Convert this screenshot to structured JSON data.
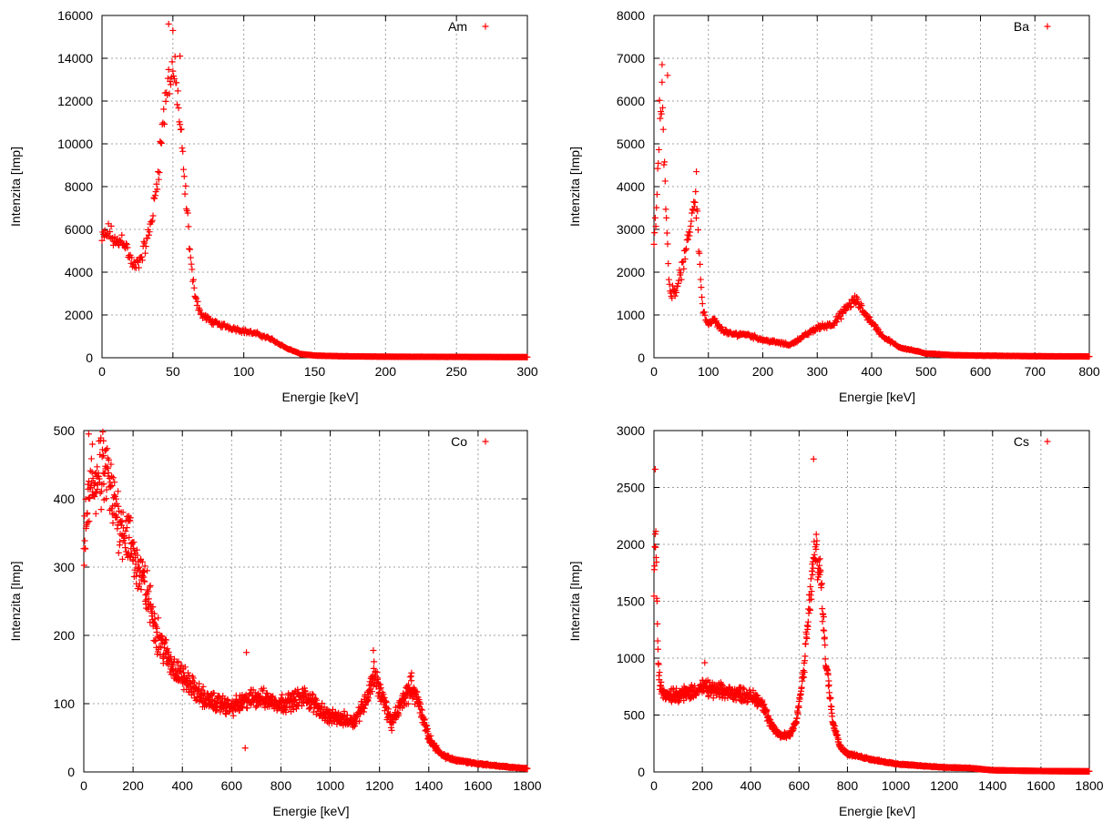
{
  "colors": {
    "series": "#ff0000",
    "grid": "#a0a0a0",
    "axis": "#000000"
  },
  "chart_data": [
    {
      "type": "scatter",
      "legend": "Am",
      "legend_position": "top-right",
      "grid": true,
      "xlabel": "Energie [keV]",
      "ylabel": "Intenzita [Imp]",
      "xlim": [
        0,
        300
      ],
      "ylim": [
        0,
        16000
      ],
      "xticks": [
        0,
        50,
        100,
        150,
        200,
        250,
        300
      ],
      "yticks": [
        0,
        2000,
        4000,
        6000,
        8000,
        10000,
        12000,
        14000,
        16000
      ],
      "profile": [
        [
          0,
          5500
        ],
        [
          5,
          5900
        ],
        [
          10,
          5300
        ],
        [
          15,
          5600
        ],
        [
          20,
          4600
        ],
        [
          23,
          4200
        ],
        [
          27,
          4600
        ],
        [
          32,
          5500
        ],
        [
          37,
          7200
        ],
        [
          40,
          9000
        ],
        [
          43,
          11000
        ],
        [
          47,
          13000
        ],
        [
          50,
          13500
        ],
        [
          53,
          12500
        ],
        [
          56,
          10000
        ],
        [
          58,
          8300
        ],
        [
          60,
          6800
        ],
        [
          62,
          5000
        ],
        [
          64,
          3600
        ],
        [
          67,
          2600
        ],
        [
          70,
          2000
        ],
        [
          80,
          1600
        ],
        [
          100,
          1250
        ],
        [
          110,
          1100
        ],
        [
          120,
          850
        ],
        [
          130,
          450
        ],
        [
          140,
          180
        ],
        [
          150,
          100
        ],
        [
          170,
          70
        ],
        [
          200,
          50
        ],
        [
          250,
          40
        ],
        [
          300,
          30
        ]
      ],
      "outliers": [
        [
          47,
          15600
        ],
        [
          50,
          15300
        ],
        [
          55,
          14100
        ]
      ],
      "noise": 0.06,
      "points_count": 600
    },
    {
      "type": "scatter",
      "legend": "Ba",
      "legend_position": "top-right",
      "grid": true,
      "xlabel": "Energie [keV]",
      "ylabel": "Intenzita [Imp]",
      "xlim": [
        0,
        800
      ],
      "ylim": [
        0,
        8000
      ],
      "xticks": [
        0,
        100,
        200,
        300,
        400,
        500,
        600,
        700,
        800
      ],
      "yticks": [
        0,
        1000,
        2000,
        3000,
        4000,
        5000,
        6000,
        7000,
        8000
      ],
      "profile": [
        [
          0,
          2600
        ],
        [
          5,
          3500
        ],
        [
          10,
          5500
        ],
        [
          15,
          6000
        ],
        [
          20,
          4500
        ],
        [
          25,
          2500
        ],
        [
          30,
          1500
        ],
        [
          40,
          1600
        ],
        [
          50,
          2000
        ],
        [
          60,
          2500
        ],
        [
          70,
          3400
        ],
        [
          75,
          3800
        ],
        [
          80,
          3300
        ],
        [
          85,
          2000
        ],
        [
          90,
          1100
        ],
        [
          100,
          750
        ],
        [
          110,
          900
        ],
        [
          120,
          700
        ],
        [
          140,
          550
        ],
        [
          170,
          550
        ],
        [
          200,
          420
        ],
        [
          250,
          300
        ],
        [
          300,
          700
        ],
        [
          330,
          800
        ],
        [
          360,
          1250
        ],
        [
          370,
          1350
        ],
        [
          390,
          1000
        ],
        [
          420,
          500
        ],
        [
          450,
          250
        ],
        [
          500,
          100
        ],
        [
          550,
          60
        ],
        [
          600,
          50
        ],
        [
          700,
          35
        ],
        [
          800,
          30
        ]
      ],
      "outliers": [
        [
          15,
          6850
        ],
        [
          25,
          6600
        ],
        [
          78,
          4350
        ]
      ],
      "noise": 0.07,
      "points_count": 700
    },
    {
      "type": "scatter",
      "legend": "Co",
      "legend_position": "top-right",
      "grid": true,
      "xlabel": "Energie [keV]",
      "ylabel": "Intenzita [Imp]",
      "xlim": [
        0,
        1800
      ],
      "ylim": [
        0,
        500
      ],
      "xticks": [
        0,
        200,
        400,
        600,
        800,
        1000,
        1200,
        1400,
        1600,
        1800
      ],
      "yticks": [
        0,
        100,
        200,
        300,
        400,
        500
      ],
      "profile": [
        [
          0,
          320
        ],
        [
          15,
          380
        ],
        [
          30,
          420
        ],
        [
          60,
          430
        ],
        [
          90,
          440
        ],
        [
          120,
          390
        ],
        [
          160,
          360
        ],
        [
          200,
          320
        ],
        [
          250,
          270
        ],
        [
          300,
          200
        ],
        [
          350,
          160
        ],
        [
          400,
          140
        ],
        [
          450,
          120
        ],
        [
          500,
          105
        ],
        [
          600,
          95
        ],
        [
          700,
          110
        ],
        [
          800,
          100
        ],
        [
          900,
          110
        ],
        [
          950,
          95
        ],
        [
          1000,
          80
        ],
        [
          1100,
          75
        ],
        [
          1150,
          110
        ],
        [
          1180,
          145
        ],
        [
          1210,
          110
        ],
        [
          1250,
          70
        ],
        [
          1300,
          110
        ],
        [
          1330,
          125
        ],
        [
          1360,
          100
        ],
        [
          1400,
          50
        ],
        [
          1450,
          25
        ],
        [
          1500,
          18
        ],
        [
          1600,
          12
        ],
        [
          1700,
          8
        ],
        [
          1800,
          5
        ]
      ],
      "outliers": [
        [
          20,
          495
        ],
        [
          35,
          480
        ],
        [
          80,
          485
        ],
        [
          660,
          175
        ],
        [
          1175,
          178
        ],
        [
          1330,
          145
        ],
        [
          655,
          35
        ]
      ],
      "noise": 0.1,
      "points_count": 1400
    },
    {
      "type": "scatter",
      "legend": "Cs",
      "legend_position": "top-right",
      "grid": true,
      "xlabel": "Energie [keV]",
      "ylabel": "Intenzita [Imp]",
      "xlim": [
        0,
        1800
      ],
      "ylim": [
        0,
        3000
      ],
      "xticks": [
        0,
        200,
        400,
        600,
        800,
        1000,
        1200,
        1400,
        1600,
        1800
      ],
      "yticks": [
        0,
        500,
        1000,
        1500,
        2000,
        2500,
        3000
      ],
      "profile": [
        [
          0,
          1500
        ],
        [
          5,
          2200
        ],
        [
          10,
          1800
        ],
        [
          15,
          1200
        ],
        [
          20,
          850
        ],
        [
          30,
          720
        ],
        [
          50,
          680
        ],
        [
          100,
          680
        ],
        [
          150,
          700
        ],
        [
          200,
          740
        ],
        [
          250,
          720
        ],
        [
          300,
          700
        ],
        [
          350,
          690
        ],
        [
          420,
          650
        ],
        [
          450,
          600
        ],
        [
          480,
          420
        ],
        [
          520,
          320
        ],
        [
          560,
          330
        ],
        [
          590,
          450
        ],
        [
          620,
          900
        ],
        [
          640,
          1400
        ],
        [
          660,
          1850
        ],
        [
          670,
          1950
        ],
        [
          690,
          1700
        ],
        [
          710,
          1000
        ],
        [
          740,
          450
        ],
        [
          770,
          220
        ],
        [
          800,
          160
        ],
        [
          900,
          110
        ],
        [
          1000,
          70
        ],
        [
          1200,
          40
        ],
        [
          1300,
          35
        ],
        [
          1400,
          15
        ],
        [
          1600,
          8
        ],
        [
          1800,
          5
        ]
      ],
      "outliers": [
        [
          5,
          2660
        ],
        [
          660,
          2750
        ],
        [
          210,
          960
        ]
      ],
      "noise": 0.07,
      "points_count": 1400
    }
  ]
}
